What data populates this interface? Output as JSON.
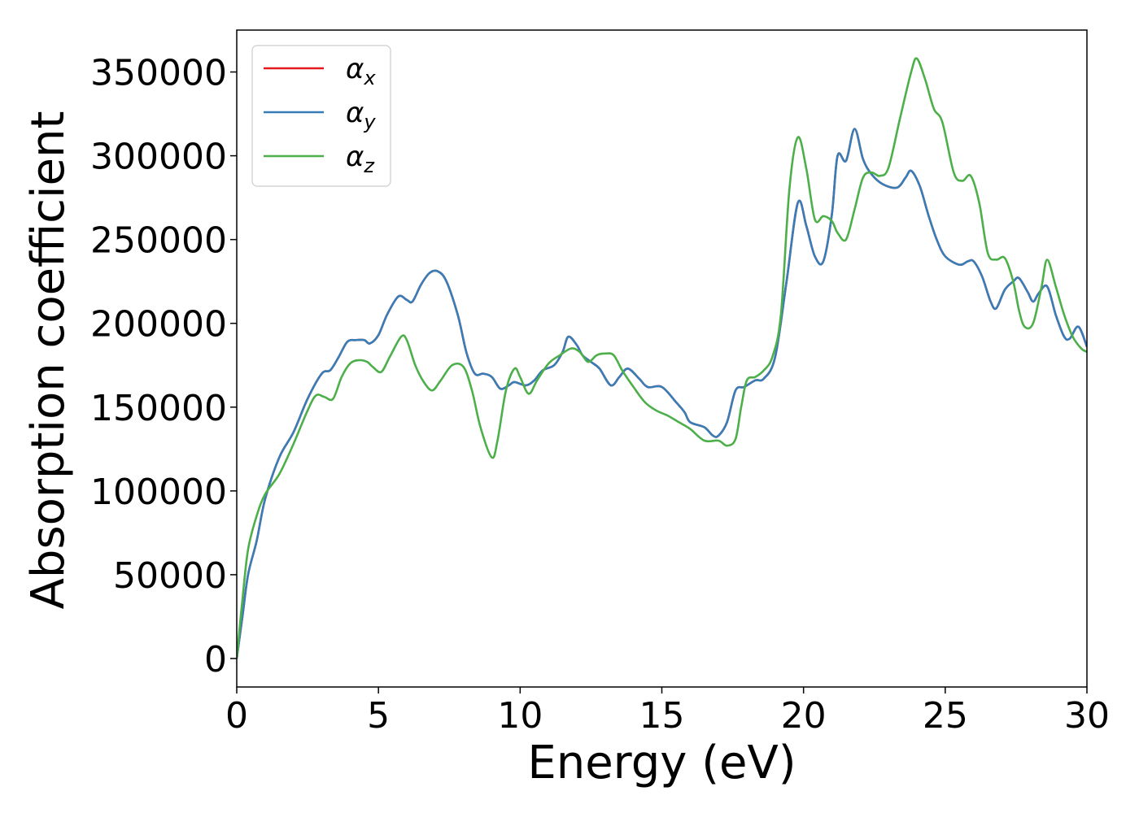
{
  "chart_data": {
    "type": "line",
    "title": "",
    "xlabel": "Energy (eV)",
    "ylabel": "Absorption coefficient",
    "xlim": [
      0,
      30
    ],
    "ylim": [
      -17000,
      375000
    ],
    "xticks": [
      0,
      5,
      10,
      15,
      20,
      25,
      30
    ],
    "yticks": [
      0,
      50000,
      100000,
      150000,
      200000,
      250000,
      300000,
      350000
    ],
    "grid": false,
    "legend_position": "top-left",
    "series": [
      {
        "name": "α_x",
        "legend_base": "α",
        "legend_sub": "x",
        "color": "#e41a1c",
        "points": [
          [
            0,
            0
          ],
          [
            0.2,
            25000
          ],
          [
            0.4,
            50000
          ],
          [
            0.7,
            70000
          ],
          [
            1,
            95000
          ],
          [
            1.5,
            120000
          ],
          [
            2,
            135000
          ],
          [
            2.5,
            155000
          ],
          [
            3,
            170000
          ],
          [
            3.3,
            172000
          ],
          [
            3.6,
            180000
          ],
          [
            3.9,
            189000
          ],
          [
            4.2,
            190000
          ],
          [
            4.5,
            190000
          ],
          [
            4.7,
            188000
          ],
          [
            5,
            193000
          ],
          [
            5.3,
            205000
          ],
          [
            5.7,
            216000
          ],
          [
            6,
            214000
          ],
          [
            6.2,
            213000
          ],
          [
            6.5,
            223000
          ],
          [
            6.8,
            230000
          ],
          [
            7.1,
            231000
          ],
          [
            7.4,
            225000
          ],
          [
            7.8,
            205000
          ],
          [
            8.1,
            183000
          ],
          [
            8.4,
            170000
          ],
          [
            8.7,
            170000
          ],
          [
            9,
            168000
          ],
          [
            9.3,
            161000
          ],
          [
            9.6,
            163000
          ],
          [
            9.8,
            165000
          ],
          [
            10.2,
            163000
          ],
          [
            10.5,
            166000
          ],
          [
            10.8,
            172000
          ],
          [
            11.2,
            175000
          ],
          [
            11.5,
            183000
          ],
          [
            11.7,
            192000
          ],
          [
            12,
            187000
          ],
          [
            12.2,
            181000
          ],
          [
            12.5,
            177000
          ],
          [
            12.8,
            173000
          ],
          [
            13.2,
            163000
          ],
          [
            13.5,
            168000
          ],
          [
            13.8,
            173000
          ],
          [
            14.2,
            167000
          ],
          [
            14.5,
            162000
          ],
          [
            15,
            162000
          ],
          [
            15.5,
            153000
          ],
          [
            15.8,
            147000
          ],
          [
            16,
            141000
          ],
          [
            16.5,
            138000
          ],
          [
            16.8,
            133000
          ],
          [
            17,
            133000
          ],
          [
            17.3,
            141000
          ],
          [
            17.6,
            160000
          ],
          [
            17.9,
            162000
          ],
          [
            18.3,
            166000
          ],
          [
            18.6,
            167000
          ],
          [
            19,
            180000
          ],
          [
            19.4,
            225000
          ],
          [
            19.8,
            272000
          ],
          [
            20.1,
            258000
          ],
          [
            20.4,
            240000
          ],
          [
            20.7,
            237000
          ],
          [
            21,
            265000
          ],
          [
            21.2,
            300000
          ],
          [
            21.5,
            297000
          ],
          [
            21.8,
            316000
          ],
          [
            22.1,
            298000
          ],
          [
            22.4,
            289000
          ],
          [
            22.8,
            283000
          ],
          [
            23.3,
            281000
          ],
          [
            23.6,
            287000
          ],
          [
            23.8,
            291000
          ],
          [
            24.1,
            282000
          ],
          [
            24.4,
            265000
          ],
          [
            24.7,
            250000
          ],
          [
            25,
            240000
          ],
          [
            25.5,
            235000
          ],
          [
            25.8,
            237000
          ],
          [
            26,
            237000
          ],
          [
            26.3,
            228000
          ],
          [
            26.6,
            213000
          ],
          [
            26.8,
            209000
          ],
          [
            27.1,
            220000
          ],
          [
            27.4,
            225000
          ],
          [
            27.6,
            227000
          ],
          [
            27.9,
            219000
          ],
          [
            28.1,
            213000
          ],
          [
            28.3,
            218000
          ],
          [
            28.6,
            222000
          ],
          [
            28.9,
            205000
          ],
          [
            29.2,
            192000
          ],
          [
            29.4,
            191000
          ],
          [
            29.7,
            198000
          ],
          [
            30,
            186000
          ]
        ]
      },
      {
        "name": "α_y",
        "legend_base": "α",
        "legend_sub": "y",
        "color": "#377eb8",
        "points": [
          [
            0,
            0
          ],
          [
            0.2,
            25000
          ],
          [
            0.4,
            50000
          ],
          [
            0.7,
            70000
          ],
          [
            1,
            95000
          ],
          [
            1.5,
            120000
          ],
          [
            2,
            135000
          ],
          [
            2.5,
            155000
          ],
          [
            3,
            170000
          ],
          [
            3.3,
            172000
          ],
          [
            3.6,
            180000
          ],
          [
            3.9,
            189000
          ],
          [
            4.2,
            190000
          ],
          [
            4.5,
            190000
          ],
          [
            4.7,
            188000
          ],
          [
            5,
            193000
          ],
          [
            5.3,
            205000
          ],
          [
            5.7,
            216000
          ],
          [
            6,
            214000
          ],
          [
            6.2,
            213000
          ],
          [
            6.5,
            223000
          ],
          [
            6.8,
            230000
          ],
          [
            7.1,
            231000
          ],
          [
            7.4,
            225000
          ],
          [
            7.8,
            205000
          ],
          [
            8.1,
            183000
          ],
          [
            8.4,
            170000
          ],
          [
            8.7,
            170000
          ],
          [
            9,
            168000
          ],
          [
            9.3,
            161000
          ],
          [
            9.6,
            163000
          ],
          [
            9.8,
            165000
          ],
          [
            10.2,
            163000
          ],
          [
            10.5,
            166000
          ],
          [
            10.8,
            172000
          ],
          [
            11.2,
            175000
          ],
          [
            11.5,
            183000
          ],
          [
            11.7,
            192000
          ],
          [
            12,
            187000
          ],
          [
            12.2,
            181000
          ],
          [
            12.5,
            177000
          ],
          [
            12.8,
            173000
          ],
          [
            13.2,
            163000
          ],
          [
            13.5,
            168000
          ],
          [
            13.8,
            173000
          ],
          [
            14.2,
            167000
          ],
          [
            14.5,
            162000
          ],
          [
            15,
            162000
          ],
          [
            15.5,
            153000
          ],
          [
            15.8,
            147000
          ],
          [
            16,
            141000
          ],
          [
            16.5,
            138000
          ],
          [
            16.8,
            133000
          ],
          [
            17,
            133000
          ],
          [
            17.3,
            141000
          ],
          [
            17.6,
            160000
          ],
          [
            17.9,
            162000
          ],
          [
            18.3,
            166000
          ],
          [
            18.6,
            167000
          ],
          [
            19,
            180000
          ],
          [
            19.4,
            225000
          ],
          [
            19.8,
            272000
          ],
          [
            20.1,
            258000
          ],
          [
            20.4,
            240000
          ],
          [
            20.7,
            237000
          ],
          [
            21,
            265000
          ],
          [
            21.2,
            300000
          ],
          [
            21.5,
            297000
          ],
          [
            21.8,
            316000
          ],
          [
            22.1,
            298000
          ],
          [
            22.4,
            289000
          ],
          [
            22.8,
            283000
          ],
          [
            23.3,
            281000
          ],
          [
            23.6,
            287000
          ],
          [
            23.8,
            291000
          ],
          [
            24.1,
            282000
          ],
          [
            24.4,
            265000
          ],
          [
            24.7,
            250000
          ],
          [
            25,
            240000
          ],
          [
            25.5,
            235000
          ],
          [
            25.8,
            237000
          ],
          [
            26,
            237000
          ],
          [
            26.3,
            228000
          ],
          [
            26.6,
            213000
          ],
          [
            26.8,
            209000
          ],
          [
            27.1,
            220000
          ],
          [
            27.4,
            225000
          ],
          [
            27.6,
            227000
          ],
          [
            27.9,
            219000
          ],
          [
            28.1,
            213000
          ],
          [
            28.3,
            218000
          ],
          [
            28.6,
            222000
          ],
          [
            28.9,
            205000
          ],
          [
            29.2,
            192000
          ],
          [
            29.4,
            191000
          ],
          [
            29.7,
            198000
          ],
          [
            30,
            186000
          ]
        ]
      },
      {
        "name": "α_z",
        "legend_base": "α",
        "legend_sub": "z",
        "color": "#4daf4a",
        "points": [
          [
            0,
            0
          ],
          [
            0.2,
            35000
          ],
          [
            0.4,
            65000
          ],
          [
            0.7,
            85000
          ],
          [
            1,
            98000
          ],
          [
            1.5,
            110000
          ],
          [
            2,
            128000
          ],
          [
            2.5,
            148000
          ],
          [
            2.8,
            157000
          ],
          [
            3.1,
            156000
          ],
          [
            3.4,
            155000
          ],
          [
            3.7,
            168000
          ],
          [
            4,
            176000
          ],
          [
            4.3,
            178000
          ],
          [
            4.6,
            177000
          ],
          [
            4.8,
            174000
          ],
          [
            5.1,
            171000
          ],
          [
            5.4,
            180000
          ],
          [
            5.8,
            192000
          ],
          [
            6,
            190000
          ],
          [
            6.3,
            175000
          ],
          [
            6.6,
            165000
          ],
          [
            6.9,
            160000
          ],
          [
            7.2,
            166000
          ],
          [
            7.6,
            175000
          ],
          [
            8,
            174000
          ],
          [
            8.3,
            160000
          ],
          [
            8.6,
            138000
          ],
          [
            9,
            120000
          ],
          [
            9.2,
            130000
          ],
          [
            9.5,
            160000
          ],
          [
            9.8,
            173000
          ],
          [
            10,
            168000
          ],
          [
            10.3,
            158000
          ],
          [
            10.6,
            166000
          ],
          [
            11,
            176000
          ],
          [
            11.4,
            181000
          ],
          [
            11.8,
            185000
          ],
          [
            12.1,
            183000
          ],
          [
            12.4,
            177000
          ],
          [
            12.7,
            181000
          ],
          [
            13,
            182000
          ],
          [
            13.3,
            181000
          ],
          [
            13.6,
            172000
          ],
          [
            14,
            162000
          ],
          [
            14.4,
            153000
          ],
          [
            14.8,
            148000
          ],
          [
            15.2,
            145000
          ],
          [
            15.6,
            141000
          ],
          [
            16,
            137000
          ],
          [
            16.5,
            130000
          ],
          [
            17,
            130000
          ],
          [
            17.3,
            127000
          ],
          [
            17.6,
            131000
          ],
          [
            17.8,
            150000
          ],
          [
            18,
            166000
          ],
          [
            18.3,
            168000
          ],
          [
            18.6,
            172000
          ],
          [
            18.9,
            180000
          ],
          [
            19.2,
            205000
          ],
          [
            19.5,
            280000
          ],
          [
            19.8,
            311000
          ],
          [
            20.1,
            292000
          ],
          [
            20.4,
            262000
          ],
          [
            20.7,
            264000
          ],
          [
            21,
            261000
          ],
          [
            21.2,
            254000
          ],
          [
            21.5,
            250000
          ],
          [
            21.8,
            268000
          ],
          [
            22.1,
            287000
          ],
          [
            22.4,
            290000
          ],
          [
            22.7,
            288000
          ],
          [
            23,
            293000
          ],
          [
            23.4,
            322000
          ],
          [
            23.8,
            350000
          ],
          [
            24,
            358000
          ],
          [
            24.3,
            345000
          ],
          [
            24.6,
            328000
          ],
          [
            24.9,
            320000
          ],
          [
            25.3,
            290000
          ],
          [
            25.6,
            285000
          ],
          [
            25.9,
            288000
          ],
          [
            26.2,
            272000
          ],
          [
            26.5,
            242000
          ],
          [
            26.8,
            238000
          ],
          [
            27.1,
            239000
          ],
          [
            27.4,
            225000
          ],
          [
            27.6,
            208000
          ],
          [
            27.8,
            198000
          ],
          [
            28.1,
            200000
          ],
          [
            28.4,
            222000
          ],
          [
            28.6,
            238000
          ],
          [
            28.9,
            222000
          ],
          [
            29.2,
            205000
          ],
          [
            29.5,
            192000
          ],
          [
            29.8,
            185000
          ],
          [
            30,
            183000
          ]
        ]
      }
    ]
  }
}
